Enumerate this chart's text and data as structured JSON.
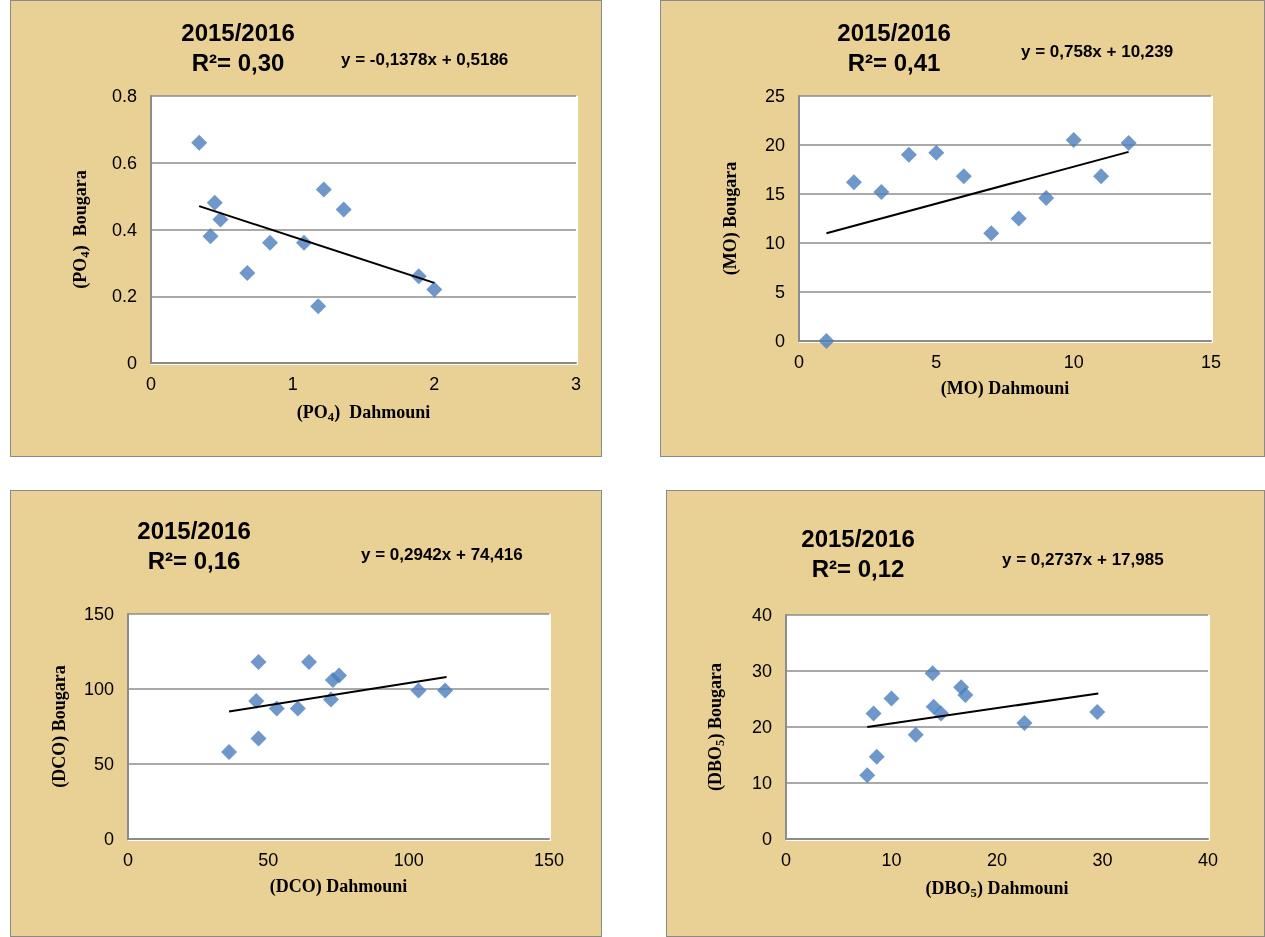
{
  "chart_data": [
    {
      "type": "scatter",
      "title": "2015/2016",
      "subtitle": "R²= 0,30",
      "annotations": [
        "y = -0,1378x + 0,5186"
      ],
      "xlabel": "(PO$_{4}$)  Dahmouni",
      "ylabel": "(PO$_{4}$)  Bougara",
      "xlim": [
        0,
        3
      ],
      "xticks": [
        0,
        1,
        2,
        3
      ],
      "ylim": [
        0,
        0.8
      ],
      "yticks": [
        0,
        0.2,
        0.4,
        0.6,
        0.8
      ],
      "grid": "y",
      "marker": "diamond",
      "series": [
        {
          "color": "#4a7ebb",
          "x": [
            0.34,
            0.45,
            0.49,
            0.42,
            0.68,
            0.84,
            1.08,
            1.18,
            1.22,
            1.36,
            1.89,
            2.0
          ],
          "values": [
            0.66,
            0.48,
            0.43,
            0.38,
            0.27,
            0.36,
            0.36,
            0.17,
            0.52,
            0.46,
            0.26,
            0.22
          ]
        },
        {
          "type": "line",
          "color": "#000000",
          "marker": "none",
          "x": [
            0.34,
            2.0
          ],
          "values": [
            0.47,
            0.24
          ]
        }
      ]
    },
    {
      "type": "scatter",
      "title": "2015/2016",
      "subtitle": "R²= 0,41",
      "annotations": [
        "y = 0,758x + 10,239"
      ],
      "xlabel": "(MO) Dahmouni",
      "ylabel": "(MO) Bougara",
      "xlim": [
        0,
        15
      ],
      "xticks": [
        0,
        5,
        10,
        15
      ],
      "ylim": [
        0,
        25
      ],
      "yticks": [
        0,
        5,
        10,
        15,
        20,
        25
      ],
      "grid": "y",
      "marker": "diamond",
      "series": [
        {
          "color": "#4a7ebb",
          "x": [
            1,
            2,
            3,
            4,
            5,
            6,
            7,
            8,
            9,
            10,
            11,
            12
          ],
          "values": [
            0,
            16.2,
            15.2,
            19,
            19.2,
            16.8,
            11,
            12.5,
            14.6,
            20.5,
            16.8,
            20.2
          ]
        },
        {
          "type": "line",
          "color": "#000000",
          "marker": "none",
          "x": [
            1,
            12
          ],
          "values": [
            11,
            19.3
          ]
        }
      ]
    },
    {
      "type": "scatter",
      "title": "2015/2016",
      "subtitle": "R²= 0,16",
      "annotations": [
        "y = 0,2942x + 74,416"
      ],
      "xlabel": "(DCO) Dahmouni",
      "ylabel": "(DCO) Bougara",
      "xlim": [
        0,
        150
      ],
      "xticks": [
        0,
        50,
        100,
        150
      ],
      "ylim": [
        0,
        150
      ],
      "yticks": [
        0,
        50,
        100,
        150
      ],
      "grid": "y",
      "marker": "diamond",
      "series": [
        {
          "color": "#4a7ebb",
          "x": [
            36,
            46.5,
            45.7,
            46.5,
            53,
            60.5,
            64.5,
            72.3,
            73,
            75.2,
            103.5,
            113
          ],
          "values": [
            58,
            118,
            92,
            67,
            87,
            87,
            118,
            93,
            106,
            109,
            99,
            99
          ]
        },
        {
          "type": "line",
          "color": "#000000",
          "marker": "none",
          "x": [
            36,
            113.5
          ],
          "values": [
            85,
            108
          ]
        }
      ]
    },
    {
      "type": "scatter",
      "title": "2015/2016",
      "subtitle": "R²= 0,12",
      "annotations": [
        "y = 0,2737x + 17,985"
      ],
      "xlabel": "(DBO$_{5}$) Dahmouni",
      "ylabel": "(DBO$_{5}$) Bougara",
      "xlim": [
        0,
        40
      ],
      "xticks": [
        0,
        10,
        20,
        30,
        40
      ],
      "ylim": [
        0,
        40
      ],
      "yticks": [
        0,
        10,
        20,
        30,
        40
      ],
      "grid": "y",
      "marker": "diamond",
      "series": [
        {
          "color": "#4a7ebb",
          "x": [
            7.7,
            8.6,
            8.3,
            10,
            12.3,
            13.9,
            14,
            14.7,
            16.6,
            17,
            22.6,
            29.5
          ],
          "values": [
            11.4,
            14.7,
            22.4,
            25.1,
            18.6,
            29.6,
            23.6,
            22.4,
            27.1,
            25.7,
            20.7,
            22.7
          ]
        },
        {
          "type": "line",
          "color": "#000000",
          "marker": "none",
          "x": [
            7.7,
            29.6
          ],
          "values": [
            20,
            26
          ]
        }
      ]
    }
  ]
}
